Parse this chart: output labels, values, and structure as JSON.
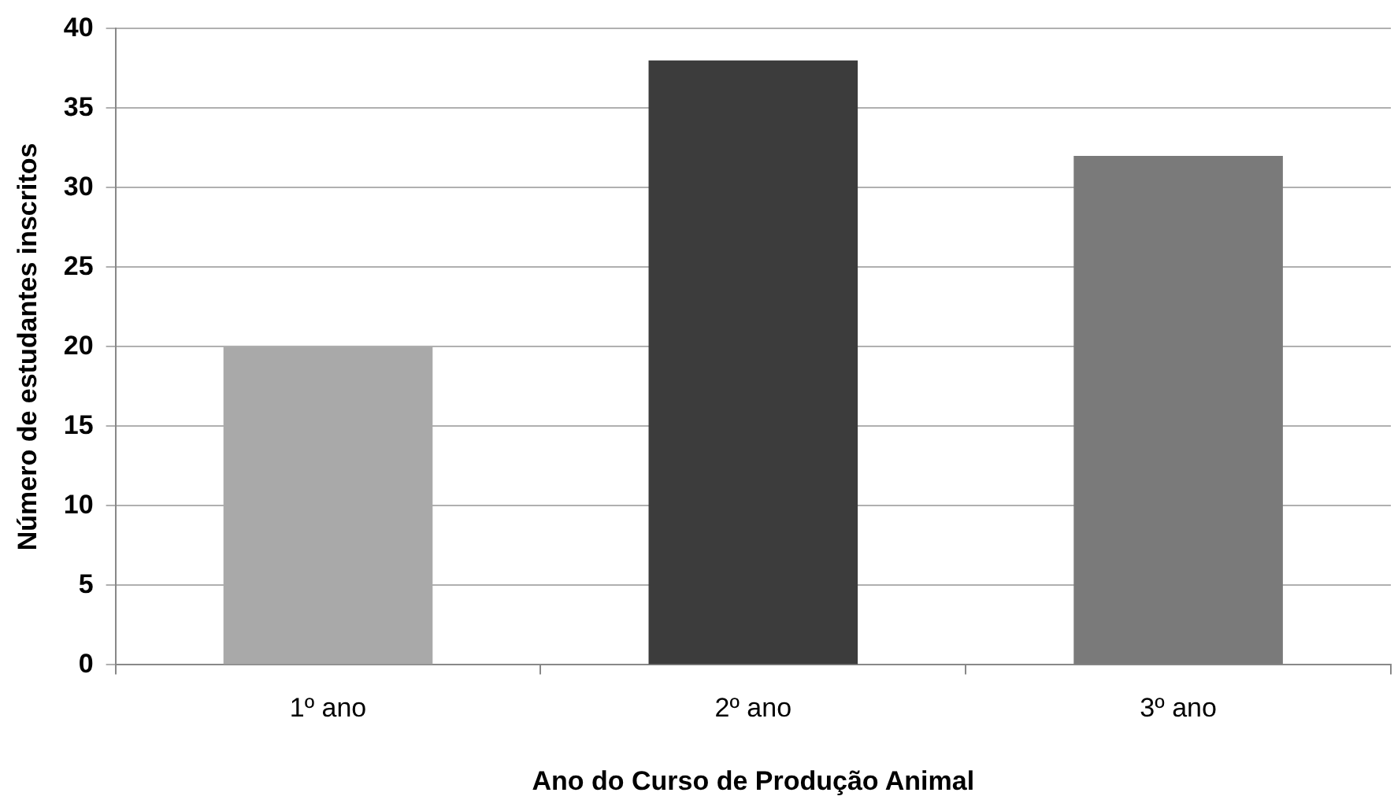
{
  "chart_data": {
    "type": "bar",
    "xlabel": "Ano do Curso de Produção Animal",
    "ylabel": "Número de estudantes inscritos",
    "categories": [
      "1º ano",
      "2º ano",
      "3º ano"
    ],
    "values": [
      20,
      38,
      32
    ],
    "colors": [
      "#a9a9a9",
      "#3c3c3c",
      "#7a7a7a"
    ],
    "ylim": [
      0,
      40
    ],
    "yticks": [
      0,
      5,
      10,
      15,
      20,
      25,
      30,
      35,
      40
    ],
    "grid": "y",
    "legend": false
  }
}
